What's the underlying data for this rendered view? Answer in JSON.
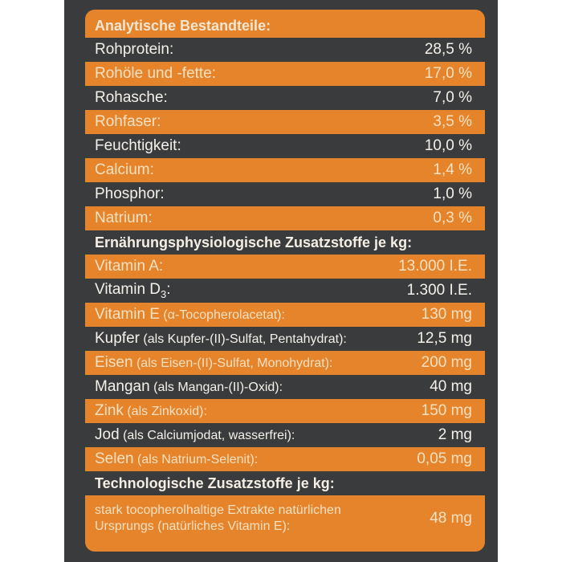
{
  "sections": [
    {
      "title": "Analytische Bestandteile:",
      "rows": [
        {
          "label": "Rohprotein:",
          "value": "28,5 %"
        },
        {
          "label": "Rohöle und -fette:",
          "value": "17,0 %"
        },
        {
          "label": "Rohasche:",
          "value": "7,0 %"
        },
        {
          "label": "Rohfaser:",
          "value": "3,5 %"
        },
        {
          "label": "Feuchtigkeit:",
          "value": "10,0 %"
        },
        {
          "label": "Calcium:",
          "value": "1,4 %"
        },
        {
          "label": "Phosphor:",
          "value": "1,0 %"
        },
        {
          "label": "Natrium:",
          "value": "0,3 %"
        }
      ]
    },
    {
      "title": "Ernährungsphysiologische Zusatzstoffe je kg:",
      "rows": [
        {
          "label": "Vitamin A:",
          "note": "",
          "value": "13.000 I.E."
        },
        {
          "label": "Vitamin D",
          "subscript": "3",
          "label_suffix": ":",
          "value": "1.300 I.E."
        },
        {
          "label": "Vitamin E",
          "note": " (α-Tocopherolacetat):",
          "value": "130 mg"
        },
        {
          "label": "Kupfer",
          "note": " (als Kupfer-(II)-Sulfat, Pentahydrat):",
          "value": "12,5 mg"
        },
        {
          "label": "Eisen",
          "note": " (als Eisen-(II)-Sulfat, Monohydrat):",
          "value": "200 mg"
        },
        {
          "label": "Mangan",
          "note": " (als Mangan-(II)-Oxid):",
          "value": "40 mg"
        },
        {
          "label": "Zink",
          "note": " (als Zinkoxid):",
          "value": "150 mg"
        },
        {
          "label": "Jod",
          "note": " (als Calciumjodat, wasserfrei):",
          "value": "2 mg"
        },
        {
          "label": "Selen",
          "note": " (als Natrium-Selenit):",
          "value": "0,05 mg"
        }
      ]
    },
    {
      "title": "Technologische Zusatzstoffe je kg:",
      "rows": [
        {
          "label": "stark tocopherolhaltige Extrakte natürlichen Ursprungs (natürliches Vitamin E):",
          "value": "48 mg"
        }
      ]
    }
  ],
  "colors": {
    "orange": "#e5842b",
    "dark": "#3a3b3d",
    "text_light": "#f6e1c2"
  }
}
